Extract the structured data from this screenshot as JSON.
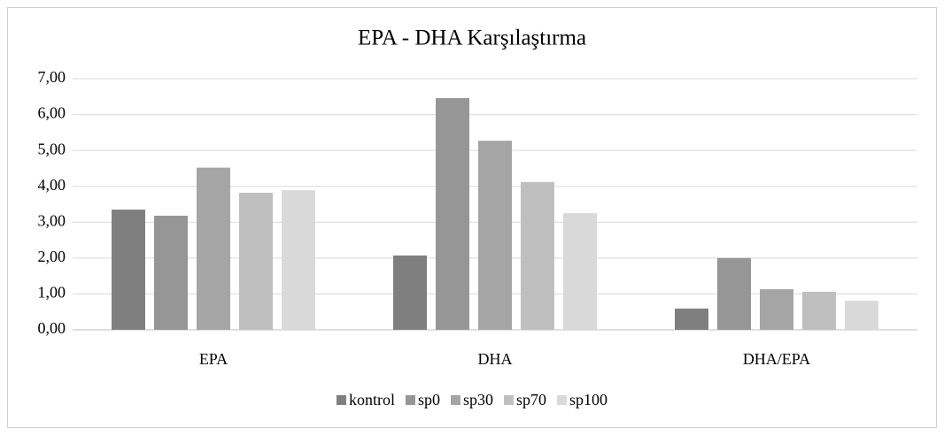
{
  "chart_data": {
    "type": "bar",
    "title": "EPA - DHA Karşılaştırma",
    "categories": [
      "EPA",
      "DHA",
      "DHA/EPA"
    ],
    "series": [
      {
        "name": "kontrol",
        "color": "#7f7f7f",
        "values": [
          3.35,
          2.07,
          0.59
        ]
      },
      {
        "name": "sp0",
        "color": "#969696",
        "values": [
          3.18,
          6.46,
          2.0
        ]
      },
      {
        "name": "sp30",
        "color": "#a5a5a5",
        "values": [
          4.52,
          5.27,
          1.13
        ]
      },
      {
        "name": "sp70",
        "color": "#bfbfbf",
        "values": [
          3.82,
          4.12,
          1.06
        ]
      },
      {
        "name": "sp100",
        "color": "#d9d9d9",
        "values": [
          3.89,
          3.25,
          0.81
        ]
      }
    ],
    "ylim": [
      0,
      7
    ],
    "yticks": [
      {
        "value": 0,
        "label": "0,00"
      },
      {
        "value": 1,
        "label": "1,00"
      },
      {
        "value": 2,
        "label": "2,00"
      },
      {
        "value": 3,
        "label": "3,00"
      },
      {
        "value": 4,
        "label": "4,00"
      },
      {
        "value": 5,
        "label": "5,00"
      },
      {
        "value": 6,
        "label": "6,00"
      },
      {
        "value": 7,
        "label": "7,00"
      }
    ],
    "grid": true,
    "legend": "bottom"
  }
}
